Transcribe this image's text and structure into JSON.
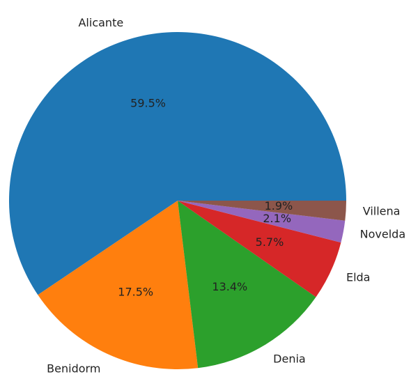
{
  "chart_data": {
    "type": "pie",
    "categories": [
      "Alicante",
      "Benidorm",
      "Denia",
      "Elda",
      "Novelda",
      "Villena"
    ],
    "values": [
      59.5,
      17.5,
      13.4,
      5.7,
      2.1,
      1.9
    ],
    "value_labels": [
      "59.5%",
      "17.5%",
      "13.4%",
      "5.7%",
      "2.1%",
      "1.9%"
    ],
    "colors": [
      "#1f77b4",
      "#ff7f0e",
      "#2ca02c",
      "#d62728",
      "#9467bd",
      "#8c564b"
    ]
  }
}
